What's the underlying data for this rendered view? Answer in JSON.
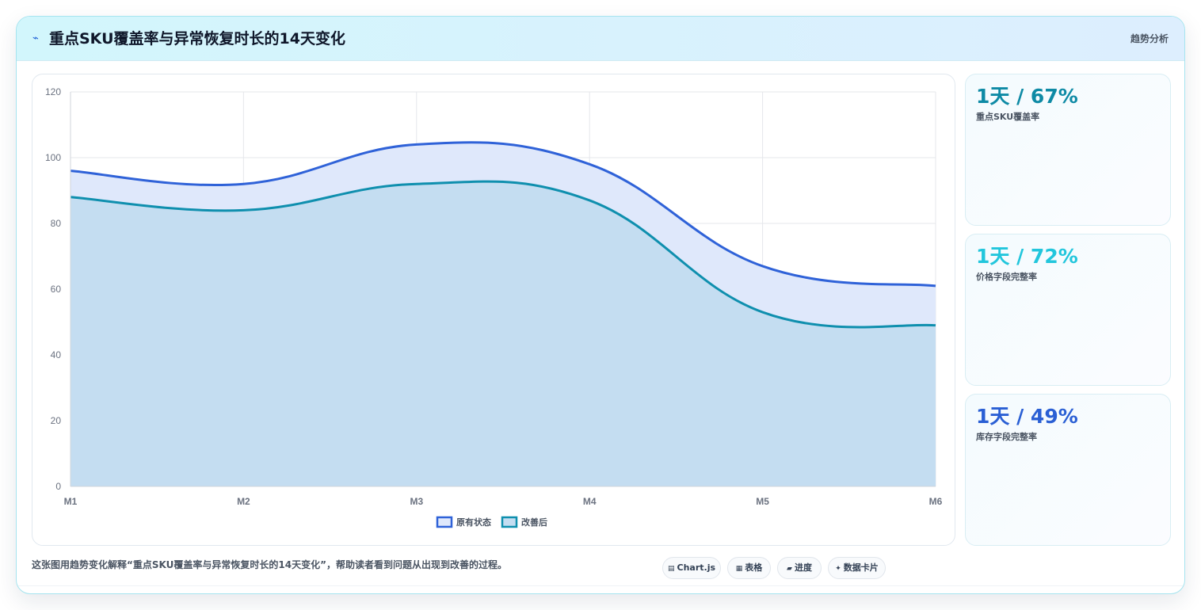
{
  "header": {
    "icon": "trend-icon",
    "title": "重点SKU覆盖率与异常恢复时长的14天变化",
    "tag": "趋势分析"
  },
  "chart_data": {
    "type": "area",
    "categories": [
      "M1",
      "M2",
      "M3",
      "M4",
      "M5",
      "M6"
    ],
    "ylim": [
      0,
      120
    ],
    "yticks": [
      0,
      20,
      40,
      60,
      80,
      100,
      120
    ],
    "grid": true,
    "legend_position": "bottom",
    "series": [
      {
        "name": "原有状态",
        "values": [
          96,
          92,
          104,
          98,
          67,
          61
        ],
        "color": "#2f62d8",
        "fill": "#dfe8fb"
      },
      {
        "name": "改善后",
        "values": [
          88,
          84,
          92,
          87,
          53,
          49
        ],
        "color": "#0f8fae",
        "fill": "#c4ddf1"
      }
    ]
  },
  "stats": [
    {
      "value": "1天 / 67%",
      "label": "重点SKU覆盖率",
      "color": "#0e8aa5"
    },
    {
      "value": "1天 / 72%",
      "label": "价格字段完整率",
      "color": "#22c6dc"
    },
    {
      "value": "1天 / 49%",
      "label": "库存字段完整率",
      "color": "#2a5fd4"
    }
  ],
  "footer": {
    "description": "这张图用趋势变化解释“重点SKU覆盖率与异常恢复时长的14天变化”，帮助读者看到问题从出现到改善的过程。",
    "chips": [
      {
        "icon": "▤",
        "label": "Chart.js"
      },
      {
        "icon": "▦",
        "label": "表格"
      },
      {
        "icon": "▰",
        "label": "进度"
      },
      {
        "icon": "✦",
        "label": "数据卡片"
      }
    ]
  }
}
